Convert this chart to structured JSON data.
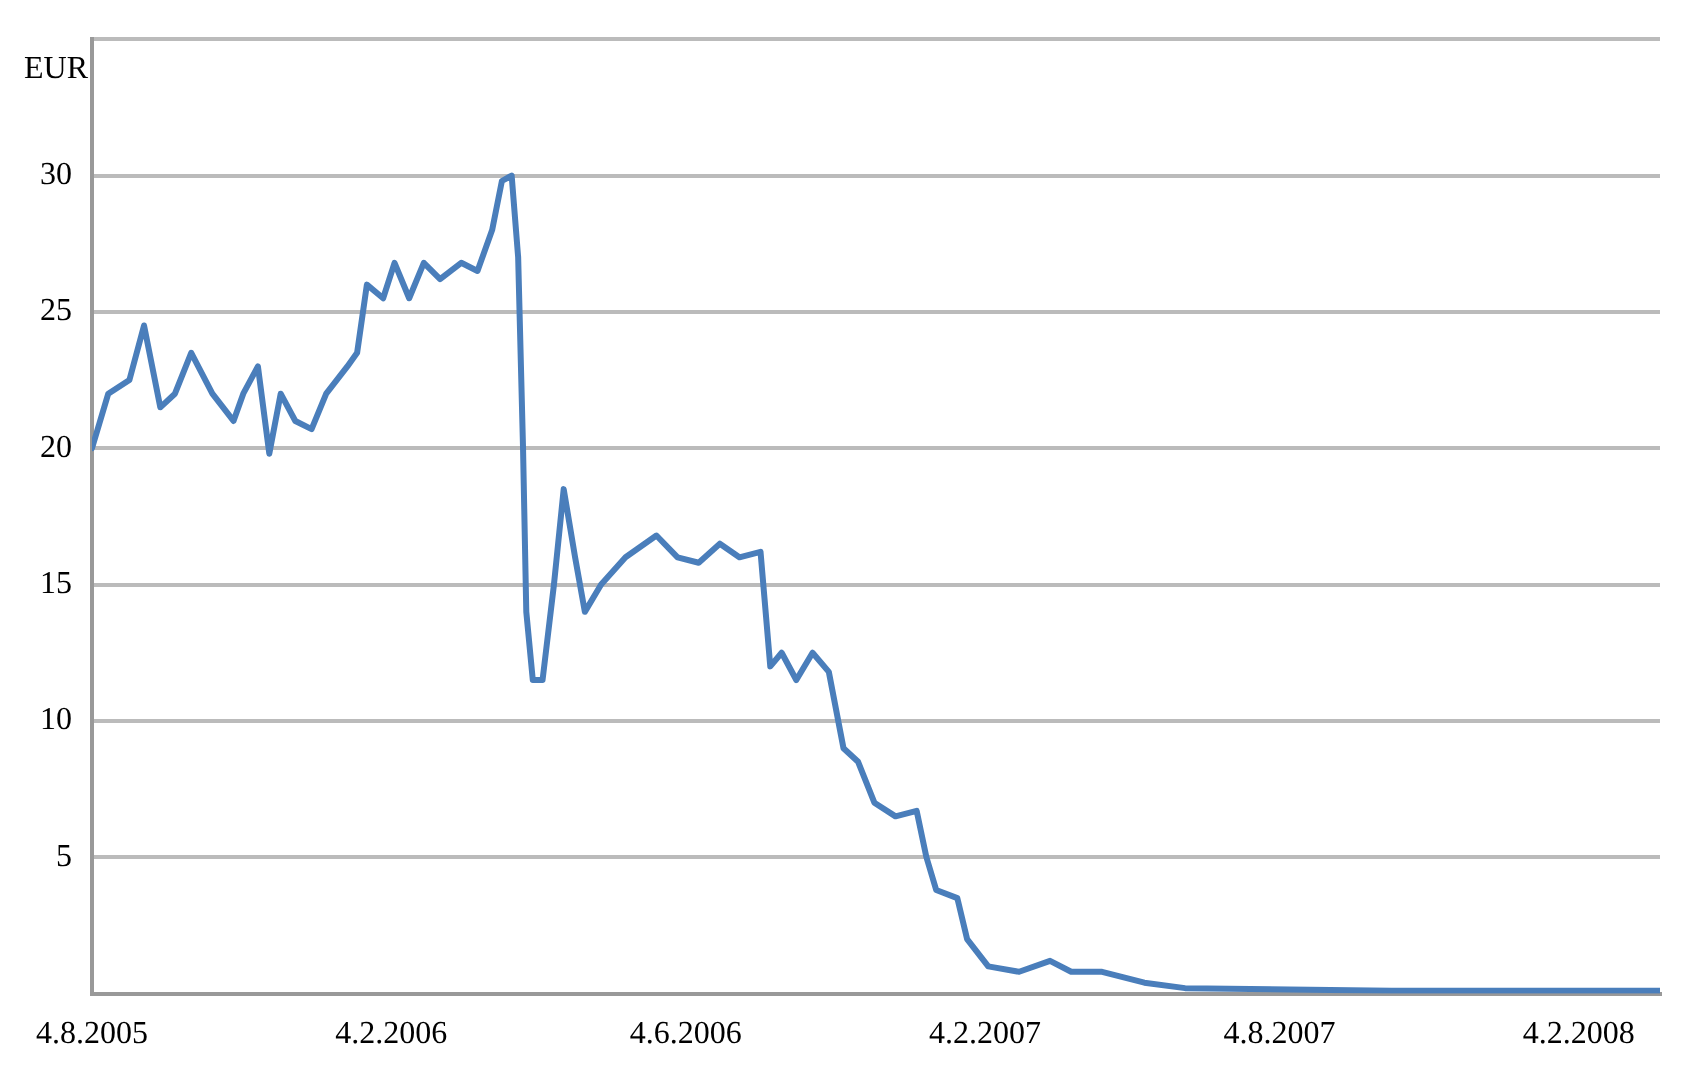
{
  "chart_data": {
    "type": "line",
    "ylabel": "EUR",
    "grid": "y",
    "legend": false,
    "marker": "none",
    "line_style": "solid",
    "xlim": [
      "2005-08-04",
      "2008-03-25"
    ],
    "xticks": [
      {
        "value": "2005-08-04",
        "label": "4.8.2005"
      },
      {
        "value": "2006-02-04",
        "label": "4.2.2006"
      },
      {
        "value": "2006-08-04",
        "label": "4.6.2006"
      },
      {
        "value": "2007-02-04",
        "label": "4.2.2007"
      },
      {
        "value": "2007-08-04",
        "label": "4.8.2007"
      },
      {
        "value": "2008-02-04",
        "label": "4.2.2008"
      }
    ],
    "ylim": [
      0,
      35
    ],
    "yticks": [
      5,
      10,
      15,
      20,
      25,
      30,
      {
        "value": 35,
        "label": null
      }
    ],
    "x": [
      "2005-08-04",
      "2005-08-14",
      "2005-08-27",
      "2005-09-05",
      "2005-09-15",
      "2005-09-24",
      "2005-10-04",
      "2005-10-17",
      "2005-10-30",
      "2005-11-05",
      "2005-11-14",
      "2005-11-21",
      "2005-11-28",
      "2005-12-07",
      "2005-12-17",
      "2005-12-26",
      "2006-01-08",
      "2006-01-14",
      "2006-01-20",
      "2006-01-30",
      "2006-02-06",
      "2006-02-15",
      "2006-02-24",
      "2006-03-06",
      "2006-03-19",
      "2006-03-29",
      "2006-04-07",
      "2006-04-13",
      "2006-04-19",
      "2006-04-23",
      "2006-04-26",
      "2006-04-28",
      "2006-05-02",
      "2006-05-08",
      "2006-05-15",
      "2006-05-21",
      "2006-05-28",
      "2006-06-03",
      "2006-06-13",
      "2006-06-28",
      "2006-07-17",
      "2006-07-30",
      "2006-08-12",
      "2006-08-25",
      "2006-09-06",
      "2006-09-19",
      "2006-09-25",
      "2006-10-02",
      "2006-10-11",
      "2006-10-21",
      "2006-10-31",
      "2006-11-09",
      "2006-11-18",
      "2006-11-28",
      "2006-12-11",
      "2006-12-24",
      "2006-12-30",
      "2007-01-05",
      "2007-01-18",
      "2007-01-24",
      "2007-02-06",
      "2007-02-25",
      "2007-03-16",
      "2007-03-29",
      "2007-04-17",
      "2007-05-13",
      "2007-06-07",
      "2007-08-10",
      "2007-10-12",
      "2008-03-25"
    ],
    "series": [
      {
        "color": "#4a7ebb",
        "values": [
          20,
          22,
          22.5,
          24.5,
          21.5,
          22,
          23.5,
          22,
          21,
          22,
          23,
          19.8,
          22,
          21,
          20.7,
          22,
          23,
          23.5,
          26,
          25.5,
          26.8,
          25.5,
          26.8,
          26.2,
          26.8,
          26.5,
          28,
          29.8,
          30,
          27,
          20,
          14,
          11.5,
          11.5,
          15,
          18.5,
          16,
          14,
          15,
          16,
          16.8,
          16,
          15.8,
          16.5,
          16,
          16.2,
          12,
          12.5,
          11.5,
          12.5,
          11.8,
          9,
          8.5,
          7,
          6.5,
          6.7,
          5,
          3.8,
          3.5,
          2,
          1,
          0.8,
          1.2,
          0.8,
          0.8,
          0.4,
          0.2,
          0.15,
          0.1,
          0.1
        ]
      }
    ]
  }
}
